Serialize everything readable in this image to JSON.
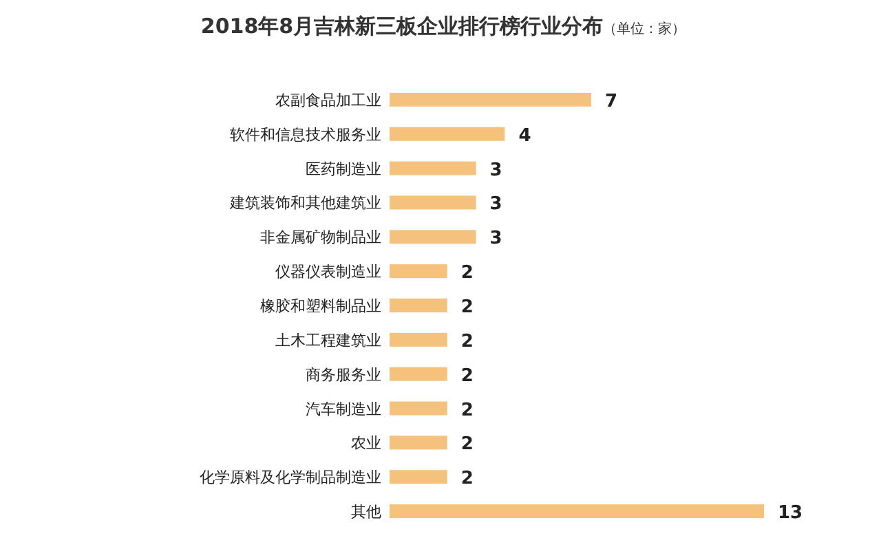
{
  "chart_data": {
    "type": "bar",
    "orientation": "horizontal",
    "title": "2018年8月吉林新三板企业排行榜行业分布",
    "subtitle": "（单位：家）",
    "categories": [
      "农副食品加工业",
      "软件和信息技术服务业",
      "医药制造业",
      "建筑装饰和其他建筑业",
      "非金属矿物制品业",
      "仪器仪表制造业",
      "橡胶和塑料制品业",
      "土木工程建筑业",
      "商务服务业",
      "汽车制造业",
      "农业",
      "化学原料及化学制品制造业",
      "其他"
    ],
    "values": [
      7,
      4,
      3,
      3,
      3,
      2,
      2,
      2,
      2,
      2,
      2,
      2,
      13
    ],
    "color": "#f5c27e",
    "data_labels": true
  }
}
